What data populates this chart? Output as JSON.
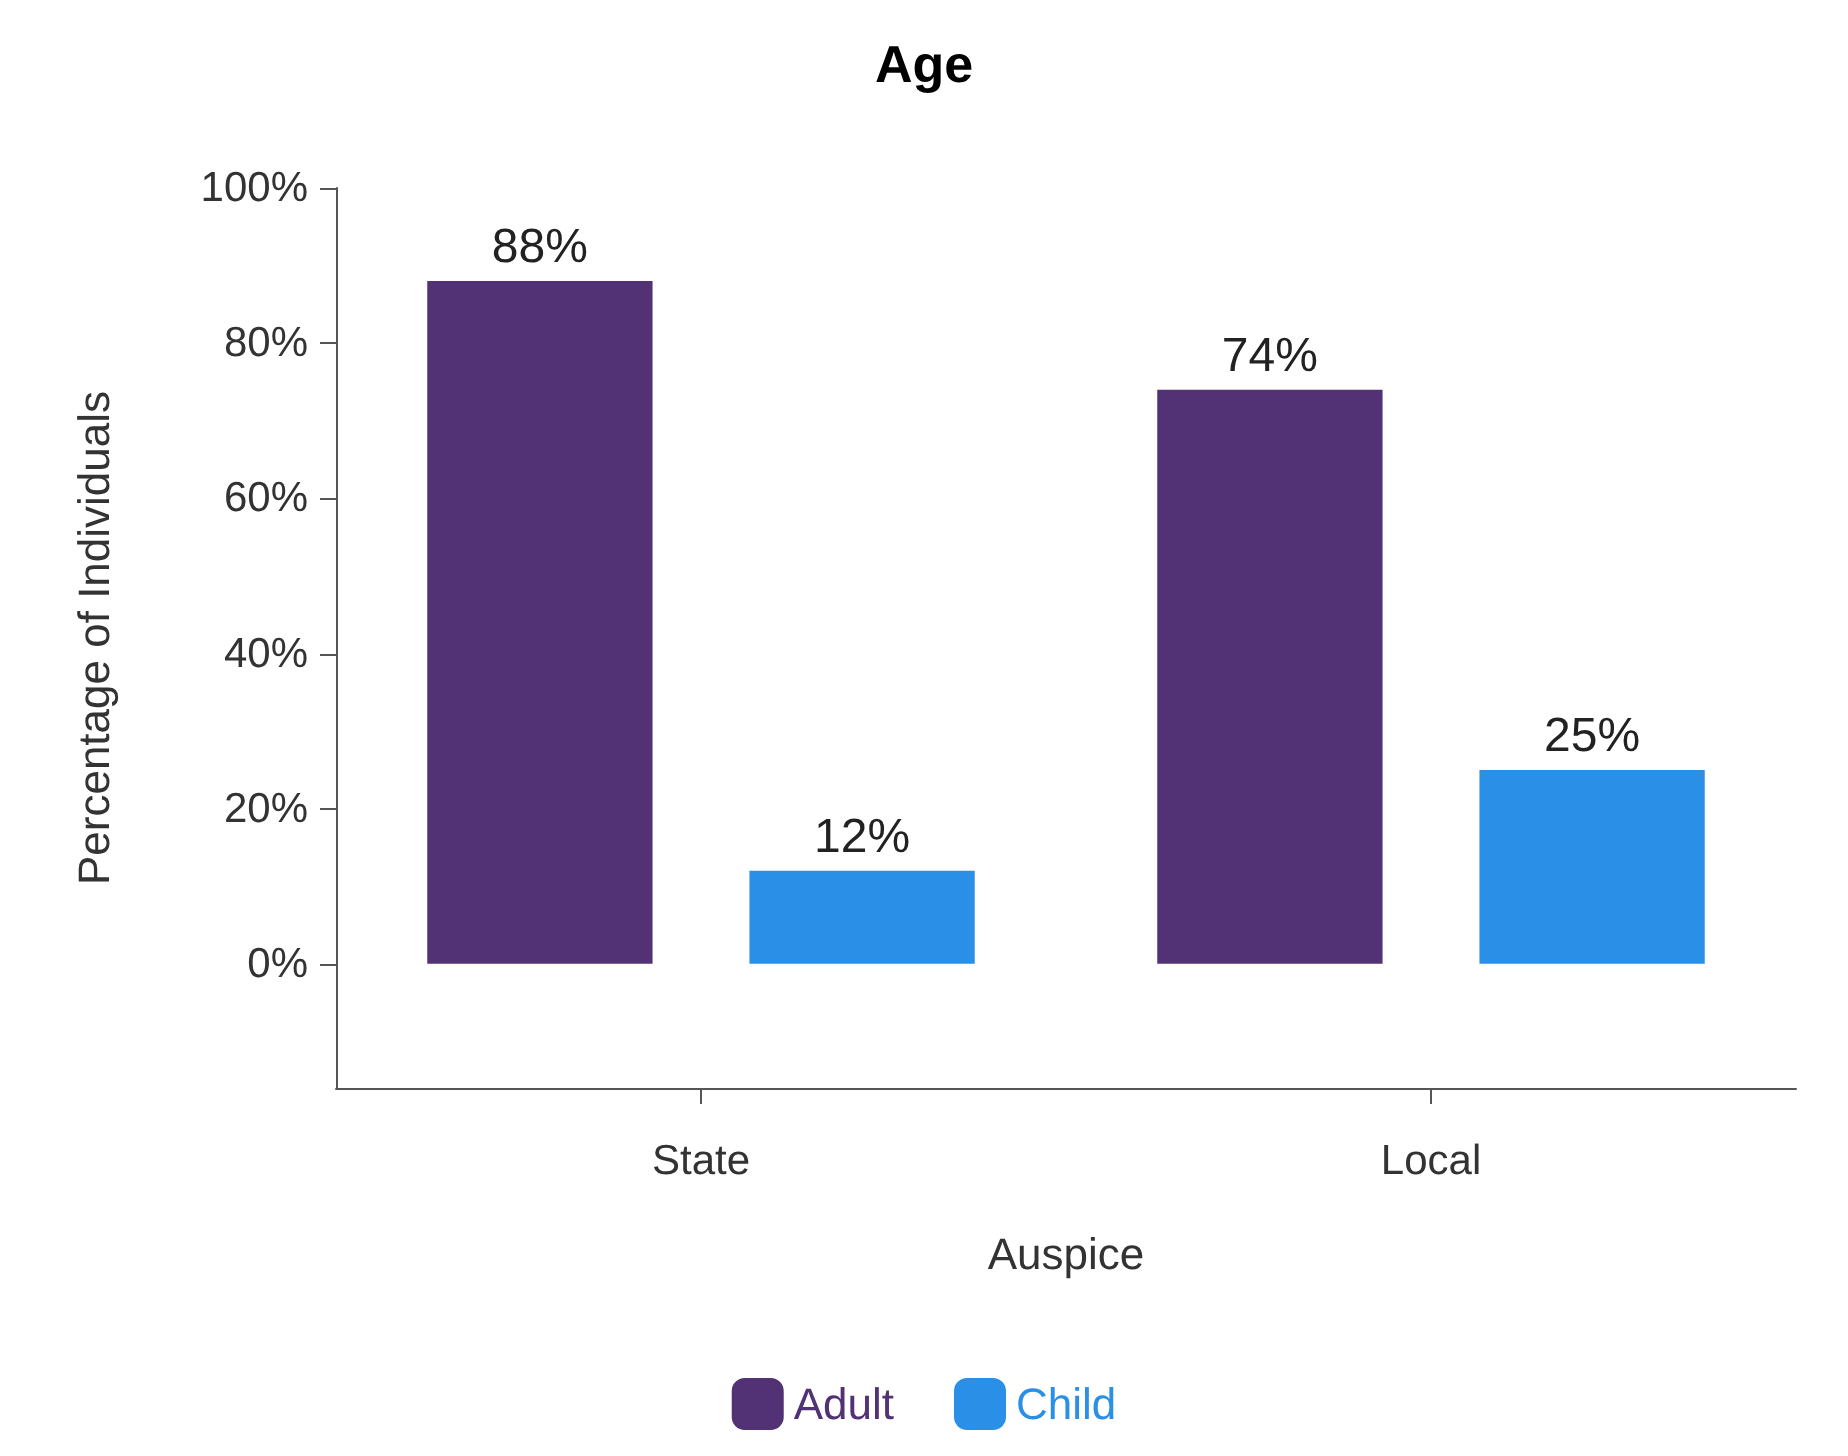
{
  "chart_data": {
    "type": "bar",
    "title": "Age",
    "xlabel": "Auspice",
    "ylabel": "Percentage of Individuals",
    "categories": [
      "State",
      "Local"
    ],
    "series": [
      {
        "name": "Adult",
        "color": "#523275",
        "values": [
          88,
          74
        ],
        "value_labels": [
          "88%",
          "74%"
        ]
      },
      {
        "name": "Child",
        "color": "#2a8fe6",
        "values": [
          12,
          25
        ],
        "value_labels": [
          "12%",
          "25%"
        ]
      }
    ],
    "ylim": [
      -16,
      100
    ],
    "yticks": [
      {
        "value": 0,
        "label": "0%"
      },
      {
        "value": 20,
        "label": "20%"
      },
      {
        "value": 40,
        "label": "40%"
      },
      {
        "value": 60,
        "label": "60%"
      },
      {
        "value": 80,
        "label": "80%"
      },
      {
        "value": 100,
        "label": "100%"
      }
    ],
    "grid": false,
    "legend": "bottom"
  }
}
